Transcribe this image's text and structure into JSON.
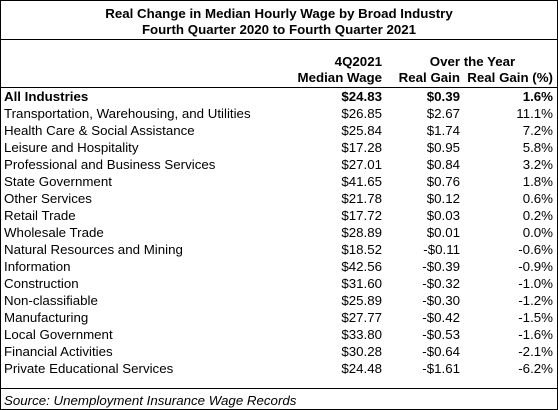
{
  "title_line1": "Real Change in Median Hourly Wage by Broad Industry",
  "title_line2": "Fourth Quarter 2020 to Fourth Quarter 2021",
  "headers": {
    "col1_line1": "4Q2021",
    "col1_line2": "Median Wage",
    "group_line1": "Over the Year",
    "col2_line2": "Real Gain",
    "col3_line2": "Real Gain (%)"
  },
  "rows": [
    {
      "industry": "All Industries",
      "median_wage": "$24.83",
      "real_gain": "$0.39",
      "real_gain_pct": "1.6%"
    },
    {
      "industry": "Transportation, Warehousing, and Utilities",
      "median_wage": "$26.85",
      "real_gain": "$2.67",
      "real_gain_pct": "11.1%"
    },
    {
      "industry": "Health Care & Social Assistance",
      "median_wage": "$25.84",
      "real_gain": "$1.74",
      "real_gain_pct": "7.2%"
    },
    {
      "industry": "Leisure and Hospitality",
      "median_wage": "$17.28",
      "real_gain": "$0.95",
      "real_gain_pct": "5.8%"
    },
    {
      "industry": "Professional and Business Services",
      "median_wage": "$27.01",
      "real_gain": "$0.84",
      "real_gain_pct": "3.2%"
    },
    {
      "industry": "State Government",
      "median_wage": "$41.65",
      "real_gain": "$0.76",
      "real_gain_pct": "1.8%"
    },
    {
      "industry": "Other Services",
      "median_wage": "$21.78",
      "real_gain": "$0.12",
      "real_gain_pct": "0.6%"
    },
    {
      "industry": "Retail Trade",
      "median_wage": "$17.72",
      "real_gain": "$0.03",
      "real_gain_pct": "0.2%"
    },
    {
      "industry": "Wholesale Trade",
      "median_wage": "$28.89",
      "real_gain": "$0.01",
      "real_gain_pct": "0.0%"
    },
    {
      "industry": "Natural Resources and Mining",
      "median_wage": "$18.52",
      "real_gain": "-$0.11",
      "real_gain_pct": "-0.6%"
    },
    {
      "industry": "Information",
      "median_wage": "$42.56",
      "real_gain": "-$0.39",
      "real_gain_pct": "-0.9%"
    },
    {
      "industry": "Construction",
      "median_wage": "$31.60",
      "real_gain": "-$0.32",
      "real_gain_pct": "-1.0%"
    },
    {
      "industry": "Non-classifiable",
      "median_wage": "$25.89",
      "real_gain": "-$0.30",
      "real_gain_pct": "-1.2%"
    },
    {
      "industry": "Manufacturing",
      "median_wage": "$27.77",
      "real_gain": "-$0.42",
      "real_gain_pct": "-1.5%"
    },
    {
      "industry": "Local Government",
      "median_wage": "$33.80",
      "real_gain": "-$0.53",
      "real_gain_pct": "-1.6%"
    },
    {
      "industry": "Financial Activities",
      "median_wage": "$30.28",
      "real_gain": "-$0.64",
      "real_gain_pct": "-2.1%"
    },
    {
      "industry": "Private Educational Services",
      "median_wage": "$24.48",
      "real_gain": "-$1.61",
      "real_gain_pct": "-6.2%"
    }
  ],
  "source": "Source: Unemployment Insurance Wage Records"
}
